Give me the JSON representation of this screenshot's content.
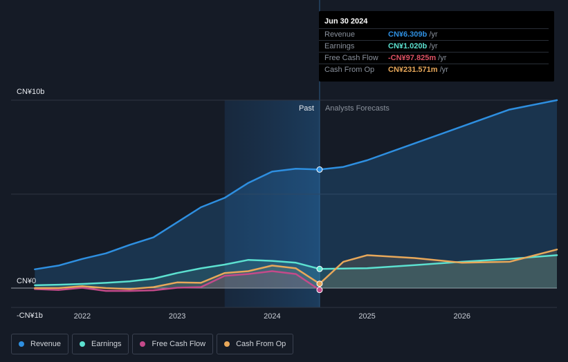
{
  "tooltip": {
    "date": "Jun 30 2024",
    "rows": [
      {
        "label": "Revenue",
        "value": "CN¥6.309b",
        "unit": "/yr",
        "color": "#2e8fe0"
      },
      {
        "label": "Earnings",
        "value": "CN¥1.020b",
        "unit": "/yr",
        "color": "#5ce1d0"
      },
      {
        "label": "Free Cash Flow",
        "value": "-CN¥97.825m",
        "unit": "/yr",
        "color": "#e05264"
      },
      {
        "label": "Cash From Op",
        "value": "CN¥231.571m",
        "unit": "/yr",
        "color": "#e8a85a"
      }
    ]
  },
  "legend": [
    {
      "label": "Revenue",
      "color": "#2e8fe0"
    },
    {
      "label": "Earnings",
      "color": "#5ce1d0"
    },
    {
      "label": "Free Cash Flow",
      "color": "#c44a8a"
    },
    {
      "label": "Cash From Op",
      "color": "#e8a85a"
    }
  ],
  "chart_data": {
    "type": "line",
    "y_axis_labels": [
      "CN¥10b",
      "CN¥0",
      "-CN¥1b"
    ],
    "x_tick_labels": [
      "2022",
      "2023",
      "2024",
      "2025",
      "2026"
    ],
    "x_ticks": [
      2022.0,
      2023.0,
      2024.0,
      2025.0,
      2026.0
    ],
    "past_label": "Past",
    "forecast_label": "Analysts Forecasts",
    "past_start": 2023.5,
    "divider": 2024.5,
    "ylim": [
      -1.0,
      10.0
    ],
    "x_range": [
      2021.25,
      2027.0
    ],
    "series": [
      {
        "name": "Revenue",
        "color": "#2e8fe0",
        "points": [
          [
            2021.5,
            1.0
          ],
          [
            2021.75,
            1.2
          ],
          [
            2022.0,
            1.55
          ],
          [
            2022.25,
            1.85
          ],
          [
            2022.5,
            2.3
          ],
          [
            2022.75,
            2.7
          ],
          [
            2023.0,
            3.5
          ],
          [
            2023.25,
            4.3
          ],
          [
            2023.5,
            4.8
          ],
          [
            2023.75,
            5.6
          ],
          [
            2024.0,
            6.2
          ],
          [
            2024.25,
            6.35
          ],
          [
            2024.5,
            6.309
          ],
          [
            2024.75,
            6.45
          ],
          [
            2025.0,
            6.8
          ],
          [
            2025.5,
            7.7
          ],
          [
            2026.0,
            8.6
          ],
          [
            2026.5,
            9.5
          ],
          [
            2027.0,
            10.0
          ]
        ]
      },
      {
        "name": "Earnings",
        "color": "#5ce1d0",
        "points": [
          [
            2021.5,
            0.15
          ],
          [
            2021.75,
            0.18
          ],
          [
            2022.0,
            0.22
          ],
          [
            2022.25,
            0.28
          ],
          [
            2022.5,
            0.36
          ],
          [
            2022.75,
            0.5
          ],
          [
            2023.0,
            0.8
          ],
          [
            2023.25,
            1.05
          ],
          [
            2023.5,
            1.25
          ],
          [
            2023.75,
            1.5
          ],
          [
            2024.0,
            1.45
          ],
          [
            2024.25,
            1.35
          ],
          [
            2024.5,
            1.02
          ],
          [
            2024.75,
            1.04
          ],
          [
            2025.0,
            1.06
          ],
          [
            2025.5,
            1.22
          ],
          [
            2026.0,
            1.4
          ],
          [
            2026.5,
            1.55
          ],
          [
            2027.0,
            1.75
          ]
        ]
      },
      {
        "name": "Free Cash Flow",
        "color": "#c44a8a",
        "points": [
          [
            2021.5,
            -0.05
          ],
          [
            2021.75,
            -0.1
          ],
          [
            2022.0,
            0.02
          ],
          [
            2022.25,
            -0.15
          ],
          [
            2022.5,
            -0.15
          ],
          [
            2022.75,
            -0.12
          ],
          [
            2023.0,
            0.02
          ],
          [
            2023.25,
            0.05
          ],
          [
            2023.5,
            0.65
          ],
          [
            2023.75,
            0.75
          ],
          [
            2024.0,
            0.9
          ],
          [
            2024.25,
            0.75
          ],
          [
            2024.5,
            -0.098
          ]
        ]
      },
      {
        "name": "Cash From Op",
        "color": "#e8a85a",
        "points": [
          [
            2021.5,
            0.0
          ],
          [
            2021.75,
            0.0
          ],
          [
            2022.0,
            0.1
          ],
          [
            2022.25,
            0.0
          ],
          [
            2022.5,
            -0.05
          ],
          [
            2022.75,
            0.05
          ],
          [
            2023.0,
            0.3
          ],
          [
            2023.25,
            0.28
          ],
          [
            2023.5,
            0.8
          ],
          [
            2023.75,
            0.9
          ],
          [
            2024.0,
            1.2
          ],
          [
            2024.25,
            1.05
          ],
          [
            2024.5,
            0.232
          ],
          [
            2024.75,
            1.4
          ],
          [
            2025.0,
            1.75
          ],
          [
            2025.5,
            1.6
          ],
          [
            2026.0,
            1.35
          ],
          [
            2026.5,
            1.4
          ],
          [
            2027.0,
            2.05
          ]
        ]
      }
    ]
  }
}
